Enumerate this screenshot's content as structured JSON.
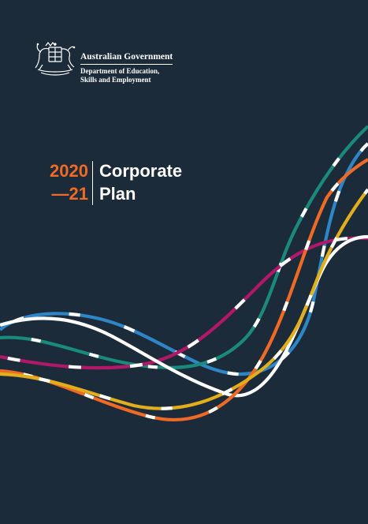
{
  "header": {
    "government_name": "Australian Government",
    "department_line1": "Department of Education,",
    "department_line2": "Skills and Employment"
  },
  "title": {
    "year_line1": "2020",
    "year_line2": "—21",
    "title_line1": "Corporate",
    "title_line2": "Plan"
  },
  "colors": {
    "background": "#1b2b3a",
    "accent_orange": "#ef6a24",
    "wave_blue": "#2f86c6",
    "wave_teal": "#1a8a7c",
    "wave_magenta": "#b3176a",
    "wave_orange": "#ef6a24",
    "wave_yellow": "#e2ae1c",
    "wave_white": "#ffffff"
  }
}
